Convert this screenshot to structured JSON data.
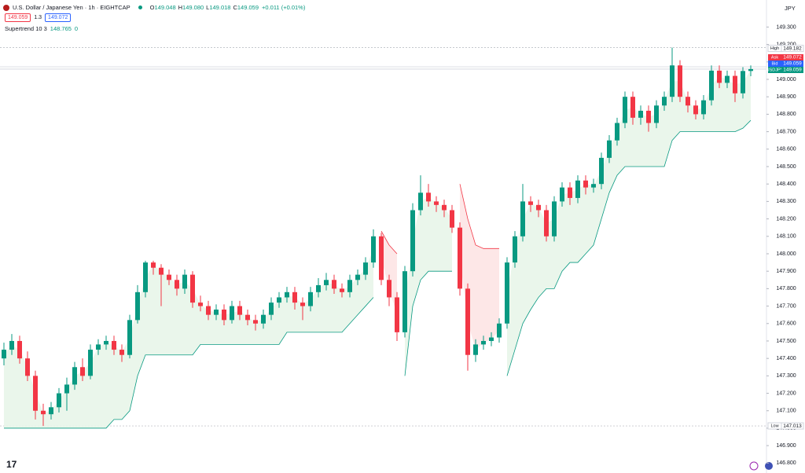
{
  "header": {
    "symbol": "U.S. Dollar / Japanese Yen · 1h · EIGHTCAP",
    "ohlc": [
      {
        "key": "O",
        "value": "149.048"
      },
      {
        "key": "H",
        "value": "149.080"
      },
      {
        "key": "L",
        "value": "149.018"
      },
      {
        "key": "C",
        "value": "149.059"
      }
    ],
    "change": "+0.011 (+0.01%)",
    "sell": "149.059",
    "spread": "1.3",
    "buy": "149.072",
    "indicator": {
      "name": "Supertrend 10 3",
      "extra": "0"
    },
    "currency": "JPY"
  },
  "chart_data": {
    "type": "candlestick",
    "up_color": "#089981",
    "down_color": "#f23645",
    "up_fill": "#e8f5e9",
    "down_fill": "#fde4e4",
    "ylim": [
      146.743,
      149.455
    ],
    "yticks": [
      {
        "value": 146.8,
        "label": "146.800"
      },
      {
        "value": 146.9,
        "label": "146.900"
      },
      {
        "value": 147.0,
        "label": "147.000"
      },
      {
        "value": 147.1,
        "label": "147.100"
      },
      {
        "value": 147.2,
        "label": "147.200"
      },
      {
        "value": 147.3,
        "label": "147.300"
      },
      {
        "value": 147.4,
        "label": "147.400"
      },
      {
        "value": 147.5,
        "label": "147.500"
      },
      {
        "value": 147.6,
        "label": "147.600"
      },
      {
        "value": 147.7,
        "label": "147.700"
      },
      {
        "value": 147.8,
        "label": "147.800"
      },
      {
        "value": 147.9,
        "label": "147.900"
      },
      {
        "value": 148.0,
        "label": "148.000"
      },
      {
        "value": 148.1,
        "label": "148.100"
      },
      {
        "value": 148.2,
        "label": "148.200"
      },
      {
        "value": 148.3,
        "label": "148.300"
      },
      {
        "value": 148.4,
        "label": "148.400"
      },
      {
        "value": 148.5,
        "label": "148.500"
      },
      {
        "value": 148.6,
        "label": "148.600"
      },
      {
        "value": 148.7,
        "label": "148.700"
      },
      {
        "value": 148.8,
        "label": "148.800"
      },
      {
        "value": 148.9,
        "label": "148.900"
      },
      {
        "value": 149.0,
        "label": "149.000"
      },
      {
        "value": 149.1,
        "label": "149.100"
      },
      {
        "value": 149.2,
        "label": "149.200"
      },
      {
        "value": 149.3,
        "label": "149.300"
      }
    ],
    "open": [
      147.4,
      147.45,
      147.5,
      147.4,
      147.3,
      147.1,
      147.08,
      147.12,
      147.2,
      147.25,
      147.35,
      147.3,
      147.45,
      147.48,
      147.5,
      147.45,
      147.42,
      147.62,
      147.78,
      147.95,
      147.92,
      147.88,
      147.85,
      147.8,
      147.88,
      147.72,
      147.7,
      147.65,
      147.68,
      147.62,
      147.7,
      147.65,
      147.62,
      147.6,
      147.65,
      147.72,
      147.75,
      147.78,
      147.72,
      147.7,
      147.78,
      147.82,
      147.85,
      147.8,
      147.78,
      147.85,
      147.88,
      147.95,
      148.1,
      147.85,
      147.75,
      147.55,
      147.9,
      148.25,
      148.35,
      148.3,
      148.28,
      148.25,
      148.15,
      147.8,
      147.42,
      147.48,
      147.5,
      147.52,
      147.6,
      147.95,
      148.1,
      148.3,
      148.28,
      148.25,
      148.1,
      148.3,
      148.38,
      148.32,
      148.42,
      148.38,
      148.4,
      148.55,
      148.65,
      148.75,
      148.9,
      148.78,
      148.82,
      148.75,
      148.85,
      148.9,
      149.08,
      148.9,
      148.85,
      148.8,
      148.88,
      149.05,
      148.98,
      149.02,
      148.92,
      149.048
    ],
    "high": [
      147.49,
      147.54,
      147.53,
      147.44,
      147.33,
      147.14,
      147.15,
      147.23,
      147.29,
      147.38,
      147.4,
      147.48,
      147.51,
      147.53,
      147.53,
      147.48,
      147.65,
      147.82,
      147.96,
      147.96,
      147.94,
      147.91,
      147.88,
      147.91,
      147.9,
      147.76,
      147.73,
      147.71,
      147.71,
      147.73,
      147.73,
      147.68,
      147.65,
      147.68,
      147.75,
      147.78,
      147.81,
      147.81,
      147.75,
      147.81,
      147.86,
      147.89,
      147.88,
      147.83,
      147.88,
      147.91,
      147.98,
      148.14,
      148.12,
      147.88,
      147.78,
      147.93,
      148.29,
      148.45,
      148.4,
      148.33,
      148.31,
      148.28,
      148.18,
      147.83,
      147.51,
      147.53,
      147.55,
      147.63,
      147.98,
      148.13,
      148.4,
      148.33,
      148.31,
      148.28,
      148.33,
      148.41,
      148.41,
      148.45,
      148.45,
      148.43,
      148.58,
      148.68,
      148.78,
      148.93,
      148.93,
      148.85,
      148.85,
      148.88,
      148.93,
      149.182,
      149.11,
      148.93,
      148.88,
      148.91,
      149.08,
      149.08,
      149.05,
      149.05,
      149.07,
      149.08
    ],
    "low": [
      147.36,
      147.42,
      147.37,
      147.27,
      147.05,
      147.013,
      147.05,
      147.09,
      147.1,
      147.22,
      147.27,
      147.28,
      147.42,
      147.45,
      147.42,
      147.38,
      147.4,
      147.6,
      147.75,
      147.88,
      147.7,
      147.82,
      147.76,
      147.77,
      147.69,
      147.67,
      147.62,
      147.62,
      147.59,
      147.6,
      147.62,
      147.59,
      147.56,
      147.57,
      147.62,
      147.69,
      147.72,
      147.68,
      147.62,
      147.67,
      147.75,
      147.79,
      147.77,
      147.75,
      147.75,
      147.82,
      147.85,
      147.92,
      147.82,
      147.7,
      147.5,
      147.52,
      147.87,
      148.22,
      148.27,
      148.24,
      148.21,
      148.12,
      147.76,
      147.33,
      147.38,
      147.45,
      147.47,
      147.49,
      147.57,
      147.92,
      148.07,
      148.24,
      148.21,
      148.07,
      148.07,
      148.27,
      148.28,
      148.29,
      148.34,
      148.35,
      148.37,
      148.52,
      148.62,
      148.72,
      148.74,
      148.74,
      148.7,
      148.72,
      148.82,
      148.87,
      148.87,
      148.81,
      148.77,
      148.77,
      148.85,
      148.95,
      148.95,
      148.87,
      148.89,
      149.018
    ],
    "close": [
      147.45,
      147.5,
      147.4,
      147.3,
      147.1,
      147.08,
      147.12,
      147.2,
      147.25,
      147.35,
      147.3,
      147.45,
      147.48,
      147.5,
      147.45,
      147.42,
      147.62,
      147.78,
      147.95,
      147.92,
      147.88,
      147.85,
      147.8,
      147.88,
      147.72,
      147.7,
      147.65,
      147.68,
      147.62,
      147.7,
      147.65,
      147.62,
      147.6,
      147.65,
      147.72,
      147.75,
      147.78,
      147.72,
      147.7,
      147.78,
      147.82,
      147.85,
      147.8,
      147.78,
      147.85,
      147.88,
      147.95,
      148.1,
      147.85,
      147.75,
      147.55,
      147.9,
      148.25,
      148.35,
      148.3,
      148.28,
      148.25,
      148.15,
      147.8,
      147.42,
      147.48,
      147.5,
      147.52,
      147.6,
      147.95,
      148.1,
      148.3,
      148.28,
      148.25,
      148.1,
      148.3,
      148.38,
      148.32,
      148.42,
      148.38,
      148.4,
      148.55,
      148.65,
      148.75,
      148.9,
      148.78,
      148.82,
      148.75,
      148.85,
      148.9,
      149.08,
      148.9,
      148.85,
      148.8,
      148.88,
      149.05,
      148.98,
      149.02,
      148.92,
      149.048,
      149.059
    ],
    "supertrend": [
      147.0,
      147.0,
      147.0,
      147.0,
      147.0,
      147.0,
      147.0,
      147.0,
      147.0,
      147.0,
      147.0,
      147.0,
      147.0,
      147.0,
      147.05,
      147.05,
      147.1,
      147.3,
      147.42,
      147.42,
      147.42,
      147.42,
      147.42,
      147.42,
      147.42,
      147.48,
      147.48,
      147.48,
      147.48,
      147.48,
      147.48,
      147.48,
      147.48,
      147.48,
      147.48,
      147.48,
      147.55,
      147.55,
      147.55,
      147.55,
      147.55,
      147.55,
      147.55,
      147.55,
      147.6,
      147.65,
      147.7,
      147.75,
      148.13,
      148.05,
      148.0,
      147.3,
      147.7,
      147.85,
      147.9,
      147.9,
      147.9,
      147.9,
      148.4,
      148.2,
      148.05,
      148.03,
      148.03,
      148.03,
      147.3,
      147.45,
      147.6,
      147.68,
      147.75,
      147.8,
      147.8,
      147.9,
      147.95,
      147.95,
      148.0,
      148.05,
      148.2,
      148.35,
      148.45,
      148.5,
      148.5,
      148.5,
      148.5,
      148.5,
      148.5,
      148.65,
      148.7,
      148.7,
      148.7,
      148.7,
      148.7,
      148.7,
      148.7,
      148.7,
      148.72,
      148.765
    ],
    "price_labels": [
      {
        "name": "High",
        "value": 149.182,
        "color": "#787b86"
      },
      {
        "name": "Ask",
        "value": 149.072,
        "color": "#f23645"
      },
      {
        "name": "Bid",
        "value": 149.059,
        "color": "#2962ff"
      },
      {
        "name": "USDJPY",
        "value": 149.059,
        "color": "#089981"
      },
      {
        "name": "Low",
        "value": 147.013,
        "color": "#787b86"
      }
    ]
  }
}
